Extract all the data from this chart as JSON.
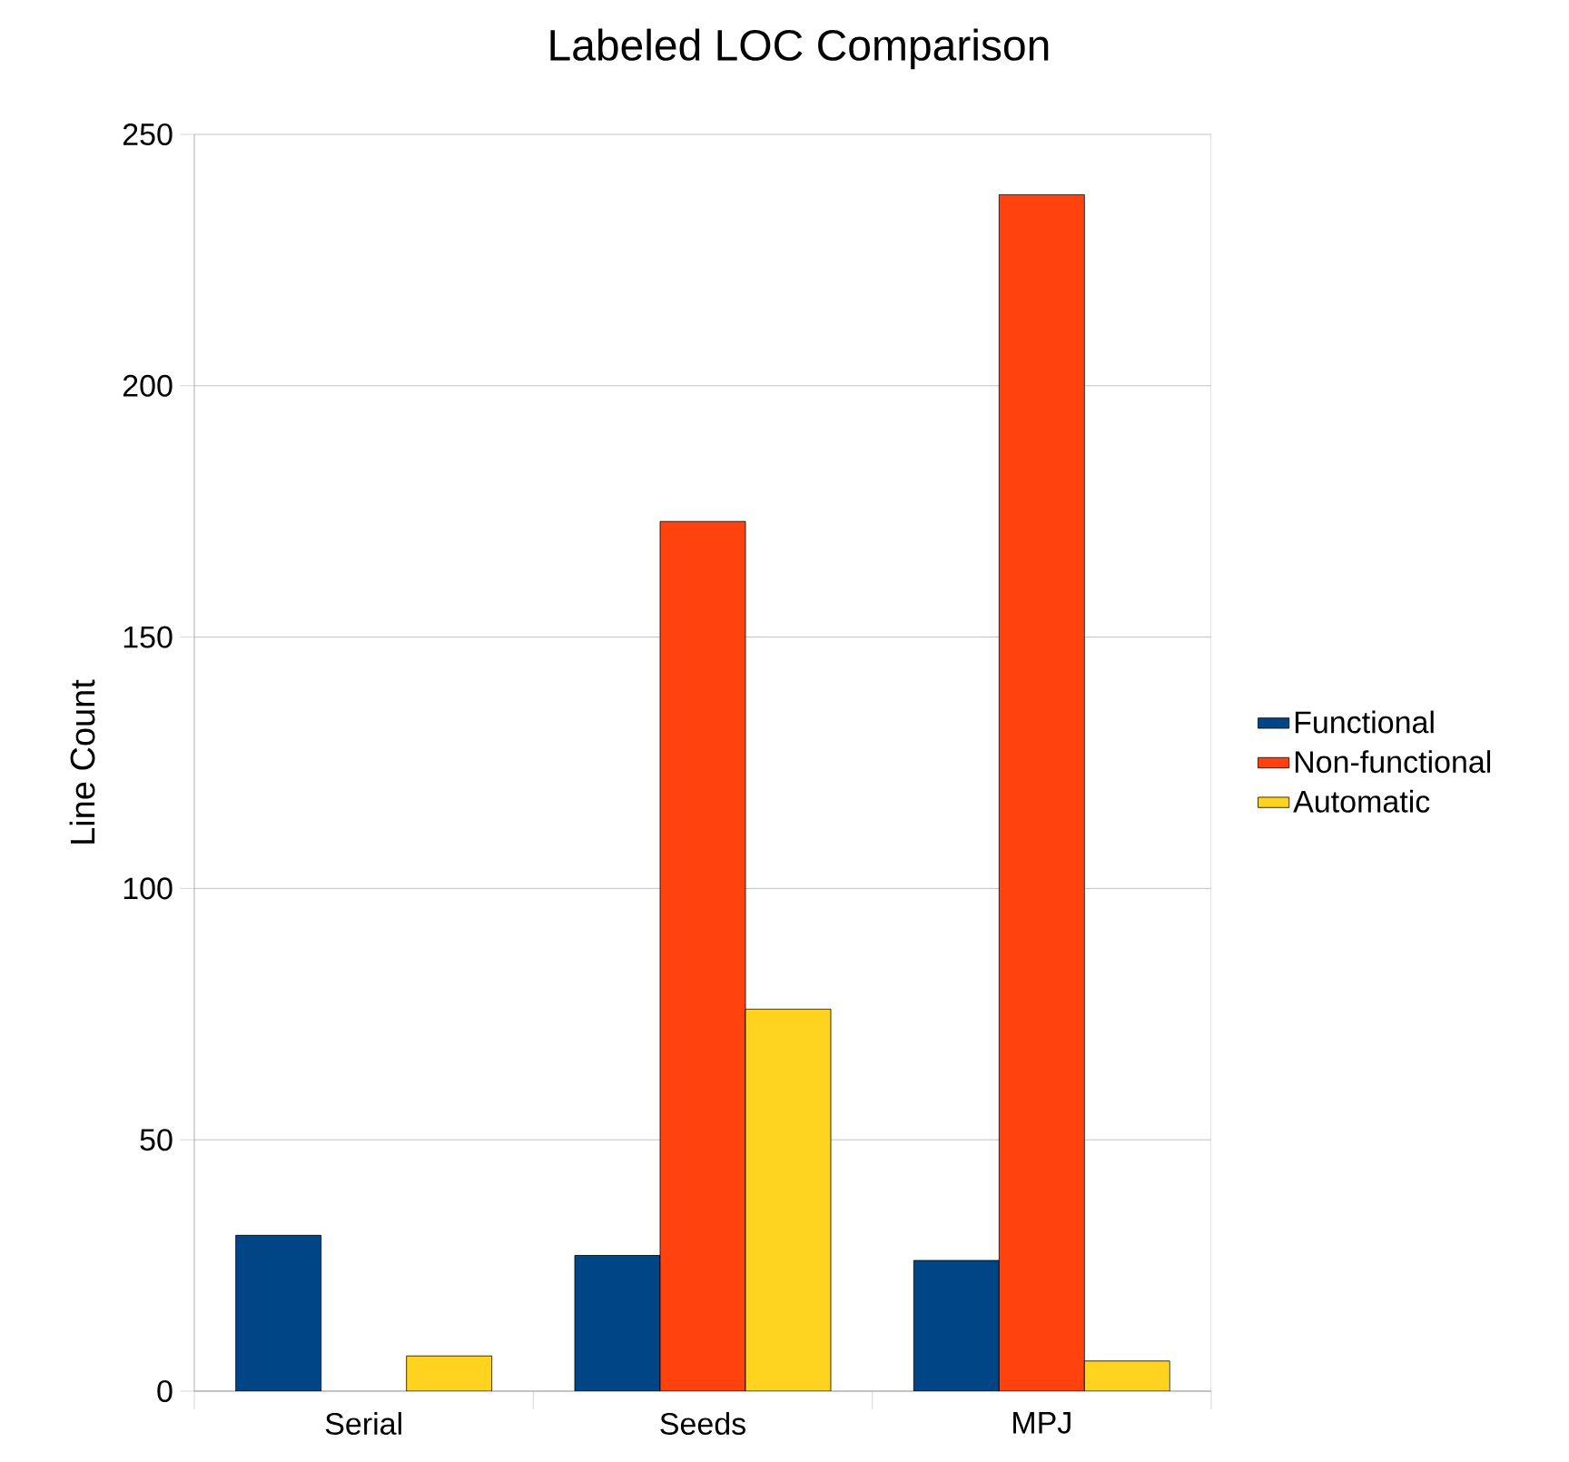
{
  "chart_data": {
    "type": "bar",
    "title": "Labeled LOC Comparison",
    "ylabel": "Line Count",
    "categories": [
      "Serial",
      "Seeds",
      "MPJ"
    ],
    "series": [
      {
        "name": "Functional",
        "color": "#004586",
        "values": [
          31,
          27,
          26
        ]
      },
      {
        "name": "Non-functional",
        "color": "#ff420e",
        "values": [
          null,
          173,
          238
        ]
      },
      {
        "name": "Automatic",
        "color": "#ffd320",
        "values": [
          7,
          76,
          6
        ]
      }
    ],
    "ylim": [
      0,
      250
    ],
    "yticks": [
      0,
      50,
      100,
      150,
      200,
      250
    ],
    "grid": "y",
    "legend": "right"
  }
}
